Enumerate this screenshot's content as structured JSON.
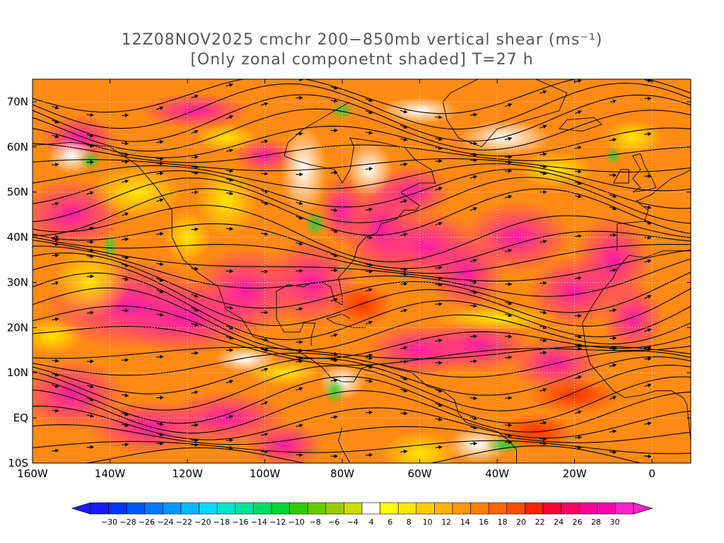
{
  "title": {
    "line1": "12Z08NOV2025 cmchr 200−850mb vertical shear (ms⁻¹)",
    "line2": "[Only zonal componetnt shaded] T=27 h"
  },
  "map": {
    "lat_labels": [
      "70N",
      "60N",
      "50N",
      "40N",
      "30N",
      "20N",
      "10N",
      "EQ",
      "10S"
    ],
    "lat_values": [
      70,
      60,
      50,
      40,
      30,
      20,
      10,
      0,
      -10
    ],
    "lon_labels": [
      "160W",
      "140W",
      "120W",
      "100W",
      "80W",
      "60W",
      "40W",
      "20W",
      "0"
    ],
    "lon_values": [
      -160,
      -140,
      -120,
      -100,
      -80,
      -60,
      -40,
      -20,
      0
    ],
    "lon_range": [
      -160,
      10
    ],
    "lat_range": [
      -10,
      75
    ],
    "gridlines": "dotted",
    "field": "zonal component of 200-850mb vertical shear (shaded), shear vector streamlines (black)"
  },
  "colorbar": {
    "labels": [
      "−30",
      "−28",
      "−26",
      "−24",
      "−22",
      "−20",
      "−18",
      "−16",
      "−14",
      "−12",
      "−10",
      "−8",
      "−6",
      "−4",
      "4",
      "6",
      "8",
      "10",
      "12",
      "14",
      "16",
      "18",
      "20",
      "22",
      "24",
      "26",
      "28",
      "30"
    ],
    "colors": [
      "#1a1aff",
      "#0033ff",
      "#0055ff",
      "#0077ff",
      "#0099ff",
      "#00bbff",
      "#00ddff",
      "#00e5cc",
      "#00e599",
      "#00dd66",
      "#00d533",
      "#33cc00",
      "#66cc00",
      "#99cc00",
      "#ccdd00",
      "#ffffff",
      "#ffff00",
      "#ffe600",
      "#ffcc00",
      "#ffb300",
      "#ff9900",
      "#ff8000",
      "#ff6600",
      "#ff4d00",
      "#ff2200",
      "#ff0033",
      "#ff0066",
      "#ff0099",
      "#ff00aa",
      "#ff22cc"
    ]
  }
}
